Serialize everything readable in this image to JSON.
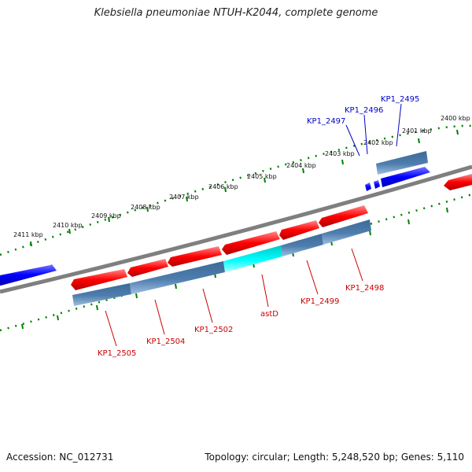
{
  "title": "Klebsiella pneumoniae NTUH-K2044, complete genome",
  "footer": {
    "accession": "Accession: NC_012731",
    "summary": "Topology: circular; Length: 5,248,520 bp; Genes: 5,110"
  },
  "kbp_labels": [
    "2411 kbp",
    "2410 kbp",
    "2409 kbp",
    "2408 kbp",
    "2407 kbp",
    "2406 kbp",
    "2405 kbp",
    "2404 kbp",
    "2403 kbp",
    "2402 kbp",
    "2401 kbp",
    "2400 kbp"
  ],
  "genes_top": [
    "KP1_2497",
    "KP1_2496",
    "KP1_2495"
  ],
  "genes_bottom": [
    "KP1_2505",
    "KP1_2504",
    "KP1_2502",
    "astD",
    "KP1_2499",
    "KP1_2498"
  ],
  "colors": {
    "red": "#ff0000",
    "blue": "#0000ff",
    "steel": "#4f7eae",
    "cyan": "#00ffff",
    "backbone": "#7f7f7f",
    "ruler": "#008000",
    "label_red": "#cc0000",
    "label_blue": "#0000cc"
  }
}
